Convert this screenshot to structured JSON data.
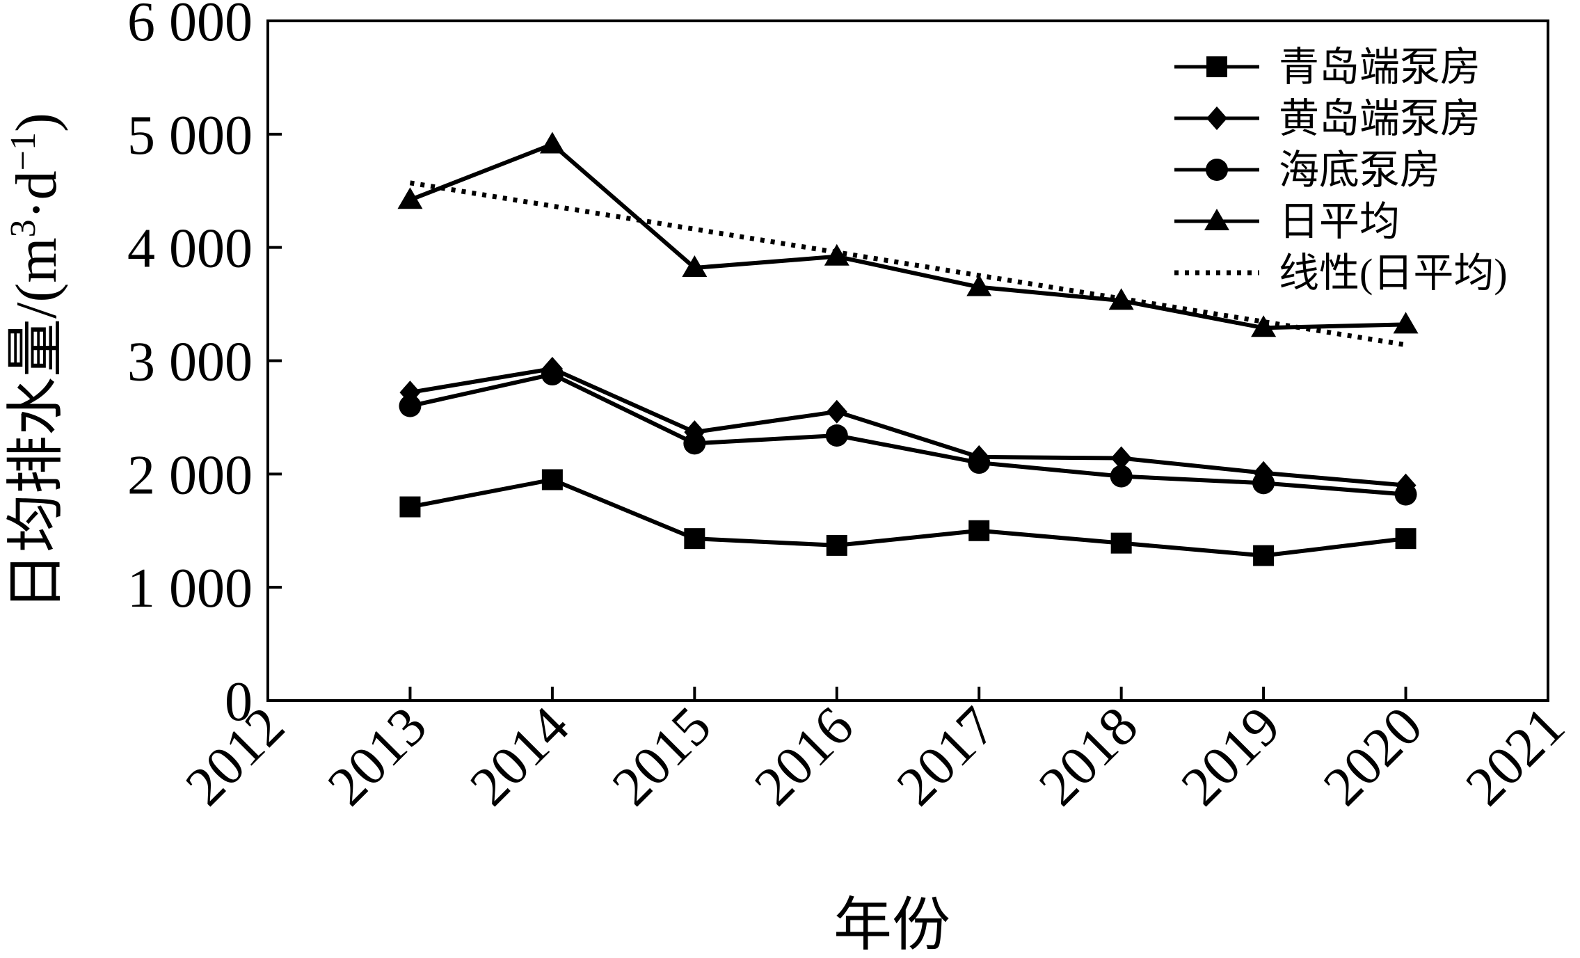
{
  "chart_data": {
    "type": "line",
    "title": "",
    "xlabel": "年份",
    "ylabel": "日均排水量/(m³·d⁻¹)",
    "ylabel_parts": {
      "main": "日均排水量/(m",
      "sup1": "3",
      "mid": "·d",
      "sup2": "−1",
      "end": ")"
    },
    "xlim": [
      2012,
      2021
    ],
    "ylim": [
      0,
      6000
    ],
    "x_ticks": [
      2012,
      2013,
      2014,
      2015,
      2016,
      2017,
      2018,
      2019,
      2020,
      2021
    ],
    "x_tick_labels": [
      "2012",
      "2013",
      "2014",
      "2015",
      "2016",
      "2017",
      "2018",
      "2019",
      "2020",
      "2021"
    ],
    "y_ticks": [
      0,
      1000,
      2000,
      3000,
      4000,
      5000,
      6000
    ],
    "y_tick_labels": [
      "0",
      "1 000",
      "2 000",
      "3 000",
      "4 000",
      "5 000",
      "6 000"
    ],
    "legend_position": "top-right",
    "x": [
      2013,
      2014,
      2015,
      2016,
      2017,
      2018,
      2019,
      2020
    ],
    "series": [
      {
        "name": "青岛端泵房",
        "marker": "square",
        "line": "solid",
        "values": [
          1710,
          1950,
          1430,
          1370,
          1500,
          1390,
          1280,
          1430
        ]
      },
      {
        "name": "黄岛端泵房",
        "marker": "diamond",
        "line": "solid",
        "values": [
          2720,
          2930,
          2370,
          2550,
          2150,
          2140,
          2010,
          1900
        ]
      },
      {
        "name": "海底泵房",
        "marker": "circle",
        "line": "solid",
        "values": [
          2600,
          2880,
          2270,
          2340,
          2100,
          1980,
          1920,
          1820
        ]
      },
      {
        "name": "日平均",
        "marker": "triangle",
        "line": "solid",
        "values": [
          4420,
          4910,
          3820,
          3920,
          3650,
          3530,
          3290,
          3320
        ]
      },
      {
        "name": "线性(日平均)",
        "marker": "none",
        "line": "dotted",
        "trend_start": [
          2013,
          4570
        ],
        "trend_end": [
          2020,
          3140
        ]
      }
    ]
  }
}
